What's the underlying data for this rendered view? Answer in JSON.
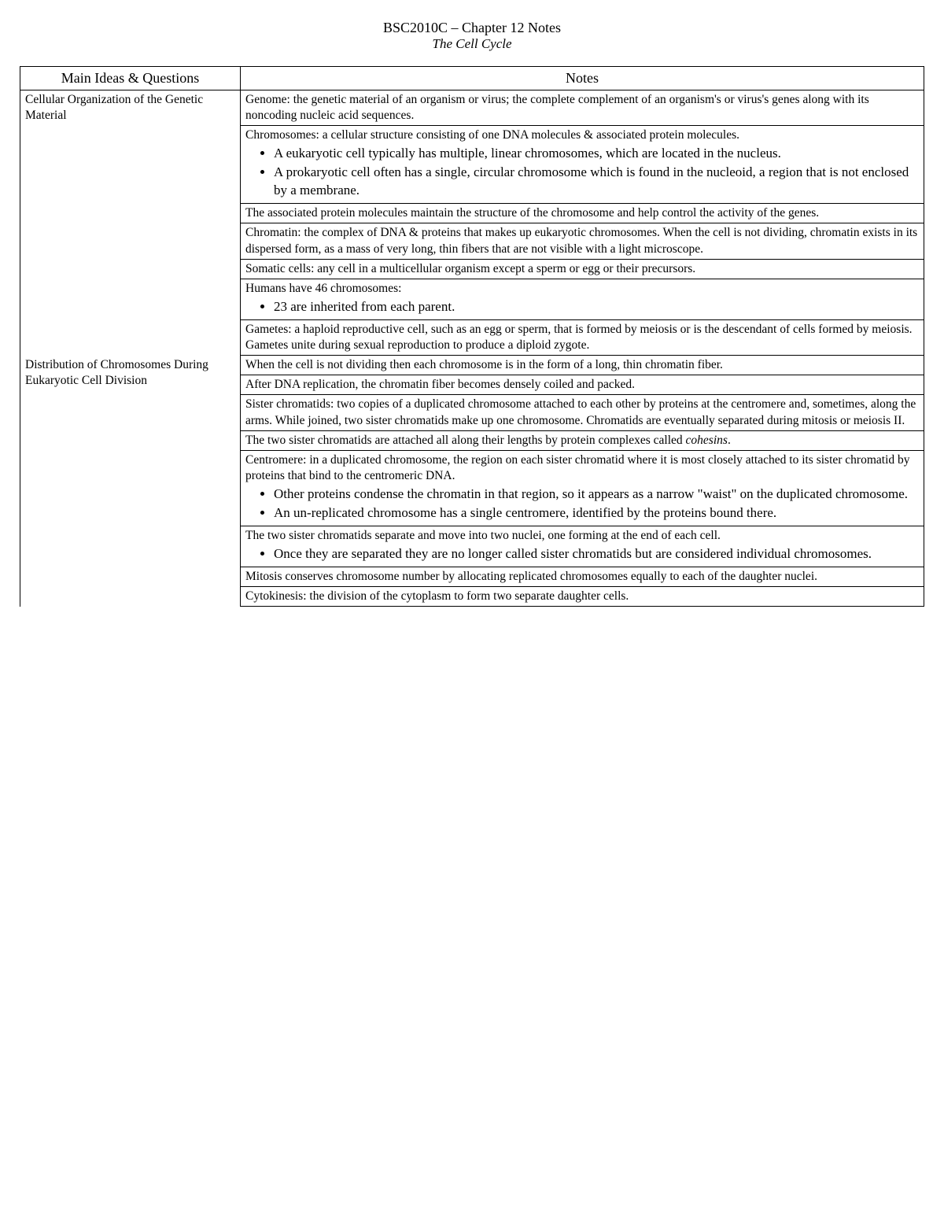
{
  "header": {
    "title": "BSC2010C – Chapter 12 Notes",
    "subtitle": "The Cell Cycle"
  },
  "table": {
    "columns": {
      "ideas": "Main Ideas & Questions",
      "notes": "Notes"
    },
    "sections": [
      {
        "idea": "Cellular Organization of the Genetic Material",
        "notes": [
          {
            "text": "Genome: the genetic material of an organism or virus; the complete complement of an organism's or virus's genes along with its noncoding nucleic acid sequences."
          },
          {
            "text": "Chromosomes: a cellular structure consisting of one DNA molecules & associated protein molecules.",
            "bullets": [
              "A eukaryotic cell typically has multiple, linear chromosomes, which are located in the nucleus.",
              "A prokaryotic cell often has a single, circular chromosome which is found in the nucleoid, a region that is not enclosed by a membrane."
            ]
          },
          {
            "text": "The associated protein molecules maintain the structure of the chromosome and help control the activity of the genes."
          },
          {
            "text": "Chromatin: the complex of DNA & proteins that makes up eukaryotic chromosomes. When the cell is not dividing, chromatin exists in its dispersed form, as a mass of very long, thin fibers that are not visible with a light microscope."
          },
          {
            "text": "Somatic cells: any cell in a multicellular organism except a sperm or egg or their precursors."
          },
          {
            "text": "Humans have 46 chromosomes:",
            "bullets": [
              "23 are inherited from each parent."
            ]
          },
          {
            "text": "Gametes: a haploid reproductive cell, such as an egg or sperm, that is formed by meiosis or is the descendant of cells formed by meiosis. Gametes unite during sexual reproduction to produce a diploid zygote."
          }
        ]
      },
      {
        "idea": "Distribution of Chromosomes During Eukaryotic Cell Division",
        "notes": [
          {
            "text": "When the cell is not dividing then each chromosome is in the form of a long, thin chromatin fiber."
          },
          {
            "text": "After DNA replication, the chromatin fiber becomes densely coiled and packed."
          },
          {
            "text": "Sister chromatids: two copies of a duplicated chromosome attached to each other by proteins at the centromere and, sometimes, along the arms. While joined, two sister chromatids make up one chromosome. Chromatids are eventually separated during mitosis or meiosis II."
          },
          {
            "html": "The two sister chromatids are attached all along their lengths by protein complexes called <span class=\"italic\">cohesins</span>."
          },
          {
            "text": "Centromere: in a duplicated chromosome, the region on each sister chromatid where it is most closely attached to its sister chromatid by proteins that bind to the centromeric DNA.",
            "bullets": [
              "Other proteins condense the chromatin in that region, so it appears as a narrow \"waist\" on the duplicated chromosome.",
              "An un-replicated chromosome has a single centromere, identified by the proteins bound there."
            ]
          },
          {
            "text": "The two sister chromatids separate and move into two nuclei, one forming at the end of each cell.",
            "bullets": [
              "Once they are separated they are no longer called sister chromatids but are considered individual chromosomes."
            ]
          },
          {
            "text": "Mitosis conserves chromosome number by allocating replicated chromosomes equally to each of the daughter nuclei."
          },
          {
            "text": "Cytokinesis: the division of the cytoplasm to form two separate daughter cells."
          }
        ]
      }
    ]
  }
}
